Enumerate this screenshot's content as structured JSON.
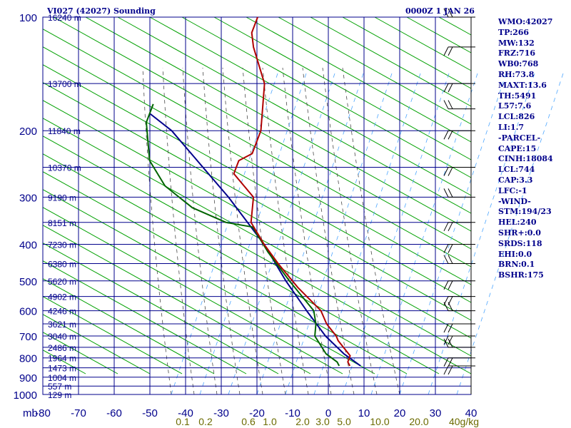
{
  "header": {
    "title": "VI027 (42027) Sounding",
    "time": "0000Z  1 JAN 26"
  },
  "info_panel": [
    "WMO:42027",
    "TP:266",
    "MW:132",
    "FRZ:716",
    "WB0:768",
    "RH:73.8",
    "MAXT:13.6",
    "TH:5491",
    "L57:7.6",
    "LCL:826",
    "LI:1.7",
    "-PARCEL-",
    "CAPE:15",
    "CINH:18084",
    "LCL:744",
    "CAP:3.3",
    "LFC:-1",
    "-WIND-",
    "STM:194/23",
    "HEL:240",
    "SHR+:0.0",
    "SRDS:118",
    "EHI:0.0",
    "BRN:0.1",
    "BSHR:175"
  ],
  "colors": {
    "grid": "#00008b",
    "dry_adiabat": "#00a000",
    "moist_adiabat": "#4a4a4a",
    "mixing_ratio": "#4da6ff",
    "temperature": "#b00000",
    "dewpoint": "#006400",
    "parcel": "#00008b",
    "mixing_label": "#6b6b00",
    "wind_barb": "#000000"
  },
  "chart_data": {
    "type": "skew-t",
    "title": "VI027 (42027) Sounding",
    "y_unit": "mb",
    "x_unit": "",
    "pressure_levels": [
      100,
      200,
      300,
      400,
      500,
      600,
      700,
      800,
      900,
      1000
    ],
    "height_labels": [
      {
        "p": 100,
        "h": "16240 m"
      },
      {
        "p": 150,
        "h": "13700 m"
      },
      {
        "p": 200,
        "h": "11840 m"
      },
      {
        "p": 250,
        "h": "10370 m"
      },
      {
        "p": 300,
        "h": "9190 m"
      },
      {
        "p": 350,
        "h": "8151 m"
      },
      {
        "p": 400,
        "h": "7230 m"
      },
      {
        "p": 450,
        "h": "6380 m"
      },
      {
        "p": 500,
        "h": "5620 m"
      },
      {
        "p": 550,
        "h": "4902 m"
      },
      {
        "p": 600,
        "h": "4246 m"
      },
      {
        "p": 650,
        "h": "3621 m"
      },
      {
        "p": 700,
        "h": "3040 m"
      },
      {
        "p": 750,
        "h": "2486 m"
      },
      {
        "p": 800,
        "h": "1964 m"
      },
      {
        "p": 850,
        "h": "1473 m"
      },
      {
        "p": 900,
        "h": "1004 m"
      },
      {
        "p": 950,
        "h": "557 m"
      },
      {
        "p": 1000,
        "h": "129 m"
      }
    ],
    "temperature_ticks": [
      -80,
      -70,
      -60,
      -50,
      -40,
      -30,
      -20,
      -10,
      0,
      10,
      20,
      30,
      40
    ],
    "mixing_ratio_labels": [
      "0.1",
      "0.2",
      "0.6",
      "1.0",
      "2.0",
      "3.0",
      "5.0",
      "10.0",
      "20.0",
      "40g/kg"
    ],
    "temperature_profile": [
      {
        "p": 840,
        "t": 3
      },
      {
        "p": 820,
        "t": 2
      },
      {
        "p": 790,
        "t": 2
      },
      {
        "p": 720,
        "t": -3
      },
      {
        "p": 700,
        "t": -4
      },
      {
        "p": 650,
        "t": -8
      },
      {
        "p": 600,
        "t": -11
      },
      {
        "p": 520,
        "t": -20
      },
      {
        "p": 450,
        "t": -28
      },
      {
        "p": 400,
        "t": -34
      },
      {
        "p": 350,
        "t": -40
      },
      {
        "p": 300,
        "t": -42
      },
      {
        "p": 260,
        "t": -50
      },
      {
        "p": 240,
        "t": -50
      },
      {
        "p": 230,
        "t": -47
      },
      {
        "p": 200,
        "t": -47
      },
      {
        "p": 150,
        "t": -51
      },
      {
        "p": 120,
        "t": -58
      },
      {
        "p": 110,
        "t": -60
      },
      {
        "p": 100,
        "t": -60
      }
    ],
    "dewpoint_profile": [
      {
        "p": 840,
        "t": 0
      },
      {
        "p": 820,
        "t": -1
      },
      {
        "p": 780,
        "t": -5
      },
      {
        "p": 700,
        "t": -10
      },
      {
        "p": 650,
        "t": -11
      },
      {
        "p": 600,
        "t": -13
      },
      {
        "p": 500,
        "t": -23
      },
      {
        "p": 420,
        "t": -32
      },
      {
        "p": 360,
        "t": -39
      },
      {
        "p": 350,
        "t": -47
      },
      {
        "p": 320,
        "t": -58
      },
      {
        "p": 280,
        "t": -68
      },
      {
        "p": 240,
        "t": -75
      },
      {
        "p": 190,
        "t": -80
      },
      {
        "p": 170,
        "t": -80
      }
    ],
    "parcel_profile": [
      {
        "p": 840,
        "t": 6
      },
      {
        "p": 780,
        "t": 0
      },
      {
        "p": 700,
        "t": -7
      },
      {
        "p": 600,
        "t": -15
      },
      {
        "p": 500,
        "t": -24
      },
      {
        "p": 400,
        "t": -34
      },
      {
        "p": 300,
        "t": -49
      },
      {
        "p": 200,
        "t": -72
      },
      {
        "p": 180,
        "t": -80
      }
    ],
    "wind_barb_levels": [
      100,
      120,
      150,
      175,
      200,
      250,
      300,
      350,
      400,
      450,
      500,
      550,
      600,
      650,
      700,
      750,
      800,
      840
    ]
  }
}
